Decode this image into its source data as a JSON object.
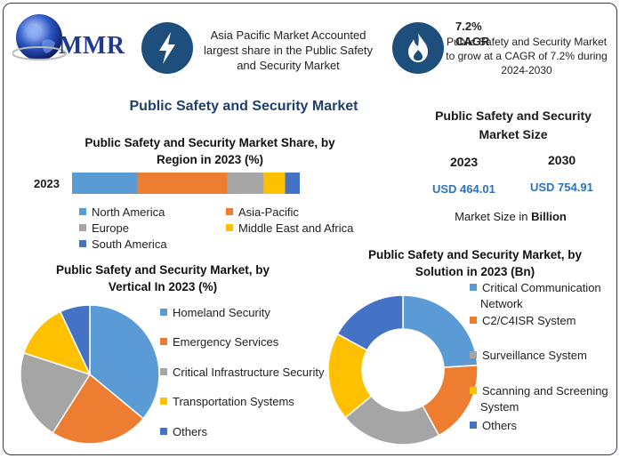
{
  "brand": {
    "logo_text": "MMR"
  },
  "header": {
    "left_text": "Asia Pacific Market Accounted largest share in the Public Safety and Security Market",
    "right_title": "7.2% CAGR",
    "right_text": "Public Safety and Security Market to grow at a CAGR of 7.2% during 2024-2030"
  },
  "main_title": "Public Safety and Security Market",
  "market_size": {
    "title": "Public Safety and Security Market Size",
    "year_a": "2023",
    "year_b": "2030",
    "value_a": "USD 464.01",
    "value_b": "USD 754.91",
    "note_prefix": "Market Size in ",
    "note_bold": "Billion"
  },
  "colors": {
    "blue": "#5b9bd5",
    "orange": "#ed7d31",
    "gray": "#a5a5a5",
    "yellow": "#ffc000",
    "darkblue": "#4472c4",
    "navy": "#1e4f7c"
  },
  "icons": {
    "header_left": "lightning-bolt-icon",
    "header_right": "flame-icon",
    "logo": "globe-icon"
  },
  "chart_data": [
    {
      "type": "bar",
      "stacked": true,
      "orientation": "horizontal",
      "title": "Public Safety and Security Market Share, by Region in 2023 (%)",
      "categories": [
        "2023"
      ],
      "series": [
        {
          "name": "North America",
          "values": [
            29
          ]
        },
        {
          "name": "Asia-Pacific",
          "values": [
            40
          ]
        },
        {
          "name": "Europe",
          "values": [
            16
          ]
        },
        {
          "name": "Middle East and Africa",
          "values": [
            9.5
          ]
        },
        {
          "name": "South America",
          "values": [
            6.5
          ]
        }
      ],
      "legend": "bottom"
    },
    {
      "type": "pie",
      "title": "Public Safety and Security Market, by Vertical In 2023 (%)",
      "labels": [
        "Homeland Security",
        "Emergency Services",
        "Critical Infrastructure Security",
        "Transportation Systems",
        "Others"
      ],
      "values": [
        36,
        23,
        21,
        13,
        7
      ],
      "legend": "right"
    },
    {
      "type": "pie",
      "donut": true,
      "title": "Public Safety and Security Market, by Solution in 2023 (Bn)",
      "labels": [
        "Critical Communication Network",
        "C2/C4ISR System",
        "Surveillance System",
        "Scanning and Screening System",
        "Others"
      ],
      "values": [
        24,
        18,
        22,
        19,
        17
      ],
      "legend": "right"
    }
  ]
}
